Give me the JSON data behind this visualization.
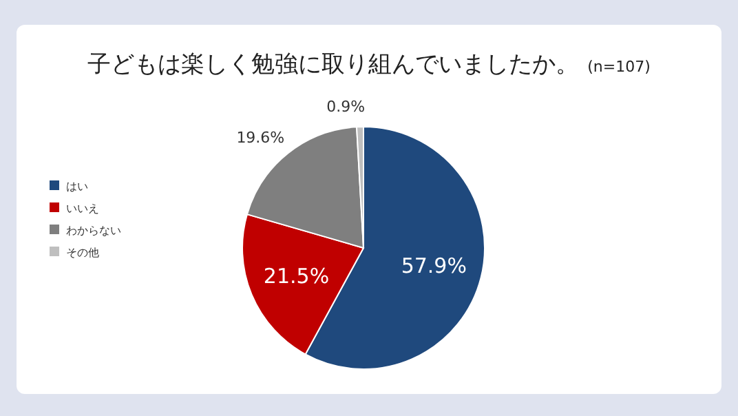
{
  "chart_data": {
    "type": "pie",
    "title": "子どもは楽しく勉強に取り組んでいましたか。",
    "subtitle": "(n=107)",
    "categories": [
      "はい",
      "いいえ",
      "わからない",
      "その他"
    ],
    "values": [
      57.9,
      21.5,
      19.6,
      0.9
    ],
    "colors": [
      "#1f497d",
      "#c00000",
      "#7f7f7f",
      "#bfbfbf"
    ],
    "value_labels": [
      "57.9%",
      "21.5%",
      "19.6%",
      "0.9%"
    ],
    "legend": "left"
  }
}
